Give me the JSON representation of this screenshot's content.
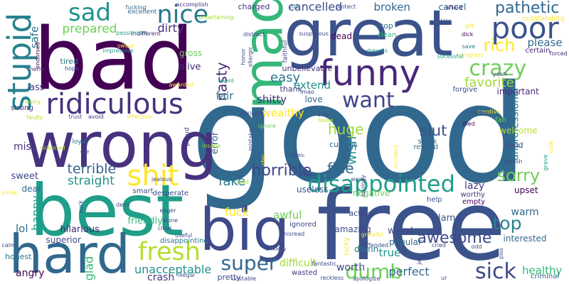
{
  "words": [
    {
      "text": "good",
      "color": "#31688e",
      "rot": 0
    },
    {
      "text": "bad",
      "color": "#440154",
      "rot": 0
    },
    {
      "text": "free",
      "color": "#3b528b",
      "rot": 0
    },
    {
      "text": "great",
      "color": "#3b528b",
      "rot": 0
    },
    {
      "text": "best",
      "color": "#1f9e89",
      "rot": 0
    },
    {
      "text": "wrong",
      "color": "#46327e",
      "rot": 0
    },
    {
      "text": "big",
      "color": "#3e4a89",
      "rot": 0
    },
    {
      "text": "hard",
      "color": "#31688e",
      "rot": 0
    },
    {
      "text": "mad",
      "color": "#35b779",
      "rot": -90
    },
    {
      "text": "funny",
      "color": "#482878",
      "rot": 0
    },
    {
      "text": "ridiculous",
      "color": "#46327e",
      "rot": 0
    },
    {
      "text": "poor",
      "color": "#3b528b",
      "rot": 0
    },
    {
      "text": "stupid",
      "color": "#26828e",
      "rot": -90
    },
    {
      "text": "nice",
      "color": "#2a788e",
      "rot": 0
    },
    {
      "text": "sad",
      "color": "#21918c",
      "rot": 0
    },
    {
      "text": "shit",
      "color": "#fde725",
      "rot": 0
    },
    {
      "text": "fresh",
      "color": "#b5de2b",
      "rot": 0
    },
    {
      "text": "disappointed",
      "color": "#1f9e89",
      "rot": 0
    },
    {
      "text": "crazy",
      "color": "#6ece58",
      "rot": 0
    },
    {
      "text": "want",
      "color": "#414487",
      "rot": 0
    },
    {
      "text": "sick",
      "color": "#3e4a89",
      "rot": 0
    },
    {
      "text": "dumb",
      "color": "#6ece58",
      "rot": 0
    },
    {
      "text": "super",
      "color": "#31688e",
      "rot": 0
    },
    {
      "text": "top",
      "color": "#26828e",
      "rot": 0
    },
    {
      "text": "sorry",
      "color": "#6ece58",
      "rot": 0
    },
    {
      "text": "awesome",
      "color": "#3e4a89",
      "rot": 0
    },
    {
      "text": "horrible",
      "color": "#414487",
      "rot": 0
    },
    {
      "text": "rich",
      "color": "#fde725",
      "rot": 0
    },
    {
      "text": "pathetic",
      "color": "#31688e",
      "rot": 0
    },
    {
      "text": "fuck",
      "color": "#fde725",
      "rot": 0
    },
    {
      "text": "huge",
      "color": "#a0da39",
      "rot": 0
    },
    {
      "text": "slut",
      "color": "#3b528b",
      "rot": 0
    },
    {
      "text": "terrible",
      "color": "#355f8d",
      "rot": 0
    },
    {
      "text": "straight",
      "color": "#21918c",
      "rot": 0
    },
    {
      "text": "favorite",
      "color": "#a0da39",
      "rot": 0
    },
    {
      "text": "fine",
      "color": "#31688e",
      "rot": 0
    },
    {
      "text": "unacceptable",
      "color": "#21918c",
      "rot": 0
    },
    {
      "text": "easy",
      "color": "#2a788e",
      "rot": 0
    },
    {
      "text": "cancelled",
      "color": "#3e4a89",
      "rot": 0
    },
    {
      "text": "broken",
      "color": "#31688e",
      "rot": 0
    },
    {
      "text": "prepared",
      "color": "#6ece58",
      "rot": 0
    },
    {
      "text": "dirty",
      "color": "#46327e",
      "rot": 0
    },
    {
      "text": "please",
      "color": "#31688e",
      "rot": 0
    },
    {
      "text": "healthy",
      "color": "#35b779",
      "rot": 0
    },
    {
      "text": "perfect",
      "color": "#31688e",
      "rot": 0
    },
    {
      "text": "difficult",
      "color": "#a0da39",
      "rot": 0
    },
    {
      "text": "worth",
      "color": "#3e4a89",
      "rot": 0
    },
    {
      "text": "true",
      "color": "#21918c",
      "rot": 0
    },
    {
      "text": "weird",
      "color": "#3e4a89",
      "rot": 0
    },
    {
      "text": "fake",
      "color": "#2a788e",
      "rot": 0
    },
    {
      "text": "nasty",
      "color": "#482878",
      "rot": -90
    },
    {
      "text": "fair",
      "color": "#2a788e",
      "rot": 0
    },
    {
      "text": "shitty",
      "color": "#46327e",
      "rot": 0
    },
    {
      "text": "wish",
      "color": "#21918c",
      "rot": -90
    },
    {
      "text": "extend",
      "color": "#21918c",
      "rot": 0
    },
    {
      "text": "unprofessional",
      "color": "#2a788e",
      "rot": -90
    },
    {
      "text": "lazy",
      "color": "#443983",
      "rot": 0
    },
    {
      "text": "upset",
      "color": "#440154",
      "rot": 0
    },
    {
      "text": "happy",
      "color": "#1f9e89",
      "rot": -90
    },
    {
      "text": "miss",
      "color": "#46327e",
      "rot": 0
    },
    {
      "text": "sweet",
      "color": "#3e4a89",
      "rot": 0
    },
    {
      "text": "lol",
      "color": "#31688e",
      "rot": 0
    },
    {
      "text": "amazing",
      "color": "#3e4a89",
      "rot": 0
    },
    {
      "text": "awful",
      "color": "#6ece58",
      "rot": 0
    },
    {
      "text": "lame",
      "color": "#3b528b",
      "rot": 0
    },
    {
      "text": "warm",
      "color": "#31688e",
      "rot": 0
    },
    {
      "text": "safe",
      "color": "#2a788e",
      "rot": -90
    },
    {
      "text": "ass",
      "color": "#443983",
      "rot": 0
    },
    {
      "text": "thank",
      "color": "#414487",
      "rot": 0
    },
    {
      "text": "alive",
      "color": "#482878",
      "rot": 0
    },
    {
      "text": "gross",
      "color": "#6ece58",
      "rot": 0
    },
    {
      "text": "error",
      "color": "#31688e",
      "rot": -90
    },
    {
      "text": "wealthy",
      "color": "#fde725",
      "rot": 0
    },
    {
      "text": "love",
      "color": "#31688e",
      "rot": 0
    },
    {
      "text": "hilarious",
      "color": "#482878",
      "rot": 0
    },
    {
      "text": "friendly",
      "color": "#35b779",
      "rot": 0
    },
    {
      "text": "crash",
      "color": "#46327e",
      "rot": 0
    },
    {
      "text": "glad",
      "color": "#35b779",
      "rot": -90
    },
    {
      "text": "angry",
      "color": "#440154",
      "rot": 0
    },
    {
      "text": "active",
      "color": "#3e4a89",
      "rot": 0
    },
    {
      "text": "interested",
      "color": "#31688e",
      "rot": 0
    },
    {
      "text": "popular",
      "color": "#31688e",
      "rot": 0
    },
    {
      "text": "damn",
      "color": "#2a788e",
      "rot": 0
    },
    {
      "text": "cancel",
      "color": "#31688e",
      "rot": 0
    },
    {
      "text": "outstanding",
      "color": "#fde725",
      "rot": 0
    },
    {
      "text": "certain",
      "color": "#482878",
      "rot": 0
    },
    {
      "text": "forgive",
      "color": "#3e4a89",
      "rot": 0
    },
    {
      "text": "clean",
      "color": "#35b779",
      "rot": 0
    },
    {
      "text": "stop",
      "color": "#31688e",
      "rot": 0
    },
    {
      "text": "dead",
      "color": "#440154",
      "rot": 0
    },
    {
      "text": "charged",
      "color": "#46327e",
      "rot": 0
    },
    {
      "text": "curious",
      "color": "#31688e",
      "rot": 0
    },
    {
      "text": "dear",
      "color": "#31688e",
      "rot": 0
    },
    {
      "text": "strong",
      "color": "#46327e",
      "rot": 0
    },
    {
      "text": "important",
      "color": "#482878",
      "rot": 0
    },
    {
      "text": "welcome",
      "color": "#b5de2b",
      "rot": 0
    },
    {
      "text": "solid",
      "color": "#3e4a89",
      "rot": 0
    },
    {
      "text": "worthy",
      "color": "#46327e",
      "rot": 0
    },
    {
      "text": "empty",
      "color": "#440154",
      "rot": 0
    },
    {
      "text": "negative",
      "color": "#6ece58",
      "rot": 0
    },
    {
      "text": "honest",
      "color": "#2a788e",
      "rot": 0
    },
    {
      "text": "superior",
      "color": "#3e4a89",
      "rot": 0
    },
    {
      "text": "reward",
      "color": "#31688e",
      "rot": 0
    },
    {
      "text": "useless",
      "color": "#3b528b",
      "rot": 0
    },
    {
      "text": "smart",
      "color": "#3e4a89",
      "rot": 0
    },
    {
      "text": "desperate",
      "color": "#3e4a89",
      "rot": 0
    },
    {
      "text": "tired",
      "color": "#2a788e",
      "rot": 0
    },
    {
      "text": "unbelievable",
      "color": "#46327e",
      "rot": 0
    },
    {
      "text": "ignored",
      "color": "#3e4a89",
      "rot": 0
    },
    {
      "text": "disappointing",
      "color": "#2a788e",
      "rot": 0
    },
    {
      "text": "pretty",
      "color": "#3e4a89",
      "rot": 0
    },
    {
      "text": "wasted",
      "color": "#46327e",
      "rot": 0
    },
    {
      "text": "help",
      "color": "#3b528b",
      "rot": 0
    },
    {
      "text": "criminal",
      "color": "#31688e",
      "rot": 0
    },
    {
      "text": "fan",
      "color": "#6ece58",
      "rot": 0
    },
    {
      "text": "proud",
      "color": "#443983",
      "rot": -90
    },
    {
      "text": "loyal",
      "color": "#2a788e",
      "rot": 0
    },
    {
      "text": "stuck",
      "color": "#31688e",
      "rot": 0
    },
    {
      "text": "died",
      "color": "#440154",
      "rot": 0
    },
    {
      "text": "lucky",
      "color": "#fde725",
      "rot": -90
    },
    {
      "text": "creative",
      "color": "#fde725",
      "rot": 0
    },
    {
      "text": "impressive",
      "color": "#1f9e89",
      "rot": 0
    },
    {
      "text": "excellent",
      "color": "#31688e",
      "rot": 0
    },
    {
      "text": "indifferent",
      "color": "#482878",
      "rot": 0
    },
    {
      "text": "kiss",
      "color": "#3e4a89",
      "rot": 0
    },
    {
      "text": "gift",
      "color": "#fde725",
      "rot": 0
    },
    {
      "text": "dick",
      "color": "#440154",
      "rot": 0
    },
    {
      "text": "save",
      "color": "#2a788e",
      "rot": 0
    },
    {
      "text": "forced",
      "color": "#482878",
      "rot": 0
    },
    {
      "text": "progress",
      "color": "#fde725",
      "rot": 0
    },
    {
      "text": "yeah",
      "color": "#3e4a89",
      "rot": 0
    },
    {
      "text": "sucessful",
      "color": "#1f9e89",
      "rot": 0
    },
    {
      "text": "lmao",
      "color": "#3e4a89",
      "rot": 0
    },
    {
      "text": "niggas",
      "color": "#3e4a89",
      "rot": 0
    },
    {
      "text": "fucking",
      "color": "#31688e",
      "rot": 0
    },
    {
      "text": "accomplish",
      "color": "#46327e",
      "rot": 0
    },
    {
      "text": "entertaining",
      "color": "#a0da39",
      "rot": 0
    },
    {
      "text": "vile",
      "color": "#2a788e",
      "rot": 0
    },
    {
      "text": "protect",
      "color": "#3e4a89",
      "rot": 0
    },
    {
      "text": "afraid",
      "color": "#482878",
      "rot": 0
    },
    {
      "text": "swear",
      "color": "#fde725",
      "rot": 0
    },
    {
      "text": "pessimistic",
      "color": "#1f9e89",
      "rot": 0
    },
    {
      "text": "distract",
      "color": "#3e4a89",
      "rot": 0
    },
    {
      "text": "dreams",
      "color": "#1f9e89",
      "rot": 0
    },
    {
      "text": "suspicious",
      "color": "#3e4a89",
      "rot": 0
    },
    {
      "text": "honor",
      "color": "#3e4a89",
      "rot": -90
    },
    {
      "text": "allergic",
      "color": "#3e4a89",
      "rot": -90
    },
    {
      "text": "endorsed",
      "color": "#440154",
      "rot": -90
    },
    {
      "text": "merry",
      "color": "#482878",
      "rot": 0
    },
    {
      "text": "hope",
      "color": "#3e4a89",
      "rot": 0
    },
    {
      "text": "awarded",
      "color": "#fde725",
      "rot": 0
    },
    {
      "text": "award",
      "color": "#1f9e89",
      "rot": 0
    },
    {
      "text": "faithful",
      "color": "#3e4a89",
      "rot": -90
    },
    {
      "text": "worry",
      "color": "#b5de2b",
      "rot": 0
    },
    {
      "text": "faulty",
      "color": "#b5de2b",
      "rot": 0
    },
    {
      "text": "trust",
      "color": "#3e4a89",
      "rot": 0
    },
    {
      "text": "avoid",
      "color": "#46327e",
      "rot": 0
    },
    {
      "text": "effective",
      "color": "#fde725",
      "rot": 0
    },
    {
      "text": "intricate",
      "color": "#3e4a89",
      "rot": 0
    },
    {
      "text": "ignore",
      "color": "#6ece58",
      "rot": 0
    },
    {
      "text": "silly",
      "color": "#3e4a89",
      "rot": 0
    },
    {
      "text": "loose",
      "color": "#b5de2b",
      "rot": 0
    },
    {
      "text": "sickened",
      "color": "#b5de2b",
      "rot": 0
    },
    {
      "text": "die",
      "color": "#3e4a89",
      "rot": 0
    },
    {
      "text": "insane",
      "color": "#a0da39",
      "rot": 0
    },
    {
      "text": "mistake",
      "color": "#3e4a89",
      "rot": -90
    },
    {
      "text": "idiotic",
      "color": "#3e4a89",
      "rot": 0
    },
    {
      "text": "chic",
      "color": "#fde725",
      "rot": -90
    },
    {
      "text": "unfair",
      "color": "#3e4a89",
      "rot": 0
    },
    {
      "text": "accident",
      "color": "#fde725",
      "rot": -90
    },
    {
      "text": "selfish",
      "color": "#3e4a89",
      "rot": 0
    },
    {
      "text": "cute",
      "color": "#fde725",
      "rot": -90
    },
    {
      "text": "grave",
      "color": "#1f9e89",
      "rot": -90
    },
    {
      "text": "jealous",
      "color": "#3e4a89",
      "rot": 0
    },
    {
      "text": "bold",
      "color": "#a0da39",
      "rot": 0
    },
    {
      "text": "wow",
      "color": "#3e4a89",
      "rot": 0
    },
    {
      "text": "apology",
      "color": "#3e4a89",
      "rot": -90
    },
    {
      "text": "suck",
      "color": "#3e4a89",
      "rot": -90
    },
    {
      "text": "smile",
      "color": "#fde725",
      "rot": 0
    },
    {
      "text": "deny",
      "color": "#3e4a89",
      "rot": 0
    },
    {
      "text": "eager",
      "color": "#3e4a89",
      "rot": 0
    },
    {
      "text": "alone",
      "color": "#3e4a89",
      "rot": 0
    },
    {
      "text": "clear",
      "color": "#3e4a89",
      "rot": 0
    },
    {
      "text": "useful",
      "color": "#3e4a89",
      "rot": 0
    },
    {
      "text": "misread",
      "color": "#3e4a89",
      "rot": 0
    },
    {
      "text": "grateful",
      "color": "#fde725",
      "rot": 0
    },
    {
      "text": "offended",
      "color": "#3e4a89",
      "rot": 0
    },
    {
      "text": "cried",
      "color": "#3e4a89",
      "rot": 0
    },
    {
      "text": "odd",
      "color": "#3e4a89",
      "rot": 0
    },
    {
      "text": "piss",
      "color": "#3e4a89",
      "rot": -90
    },
    {
      "text": "anxiety",
      "color": "#3e4a89",
      "rot": 0
    },
    {
      "text": "calm",
      "color": "#3e4a89",
      "rot": 0
    },
    {
      "text": "illegal",
      "color": "#3e4a89",
      "rot": 0
    },
    {
      "text": "unstable",
      "color": "#3e4a89",
      "rot": 0
    },
    {
      "text": "fantastic",
      "color": "#3e4a89",
      "rot": 0
    },
    {
      "text": "reckless",
      "color": "#3e4a89",
      "rot": 0
    },
    {
      "text": "apologize",
      "color": "#3e4a89",
      "rot": 0
    },
    {
      "text": "jail",
      "color": "#3e4a89",
      "rot": -90
    },
    {
      "text": "ur",
      "color": "#3e4a89",
      "rot": 0
    }
  ]
}
